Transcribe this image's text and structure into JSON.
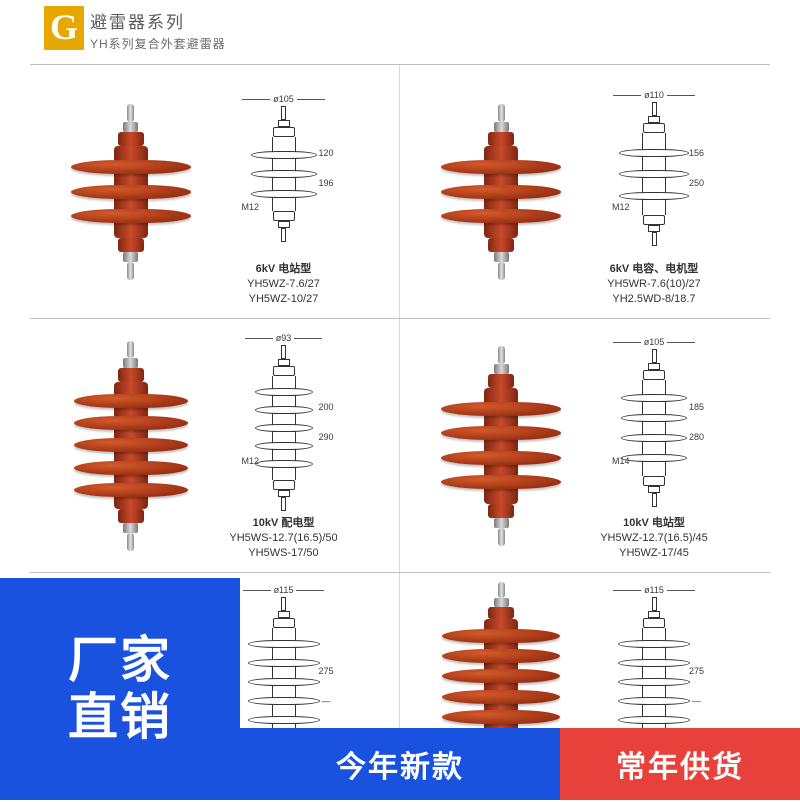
{
  "header": {
    "mark": "G",
    "title_cn": "避雷器系列",
    "title_sub": "YH系列复合外套避雷器"
  },
  "colors": {
    "shed_red_light": "#d35a2a",
    "shed_red_dark": "#9a2f12",
    "cap_red_light": "#c9492a",
    "cap_red_dark": "#7f2612",
    "metal_light": "#e4e4e4",
    "metal_dark": "#7a7a7a",
    "line": "#333333",
    "mark_bg": "#e6a800",
    "border": "#bfbfbf",
    "overlay_blue": "#1a52e0",
    "overlay_red": "#e8413c"
  },
  "rows": [
    {
      "left": {
        "photo": {
          "sheds": 3,
          "shed_w": 120,
          "body_h": 92
        },
        "tech": {
          "sheds": 3,
          "shed_w": 66,
          "body_h": 74,
          "top_dim": "ø105",
          "side_dims": [
            "120",
            "196"
          ],
          "mlabel": "M12"
        },
        "caption_main": "6kV 电站型",
        "caption_models": "YH5WZ-7.6/27\nYH5WZ-10/27"
      },
      "right": {
        "photo": {
          "sheds": 3,
          "shed_w": 120,
          "body_h": 92
        },
        "tech": {
          "sheds": 3,
          "shed_w": 70,
          "body_h": 82,
          "top_dim": "ø110",
          "side_dims": [
            "156",
            "250"
          ],
          "mlabel": "M12"
        },
        "caption_main": "6kV 电容、电机型",
        "caption_models": "YH5WR-7.6(10)/27\nYH2.5WD-8/18.7"
      }
    },
    {
      "left": {
        "photo": {
          "sheds": 5,
          "shed_w": 114,
          "body_h": 128
        },
        "tech": {
          "sheds": 5,
          "shed_w": 58,
          "body_h": 104,
          "top_dim": "ø93",
          "side_dims": [
            "200",
            "290"
          ],
          "mlabel": "M12"
        },
        "caption_main": "10kV 配电型",
        "caption_models": "YH5WS-12.7(16.5)/50\nYH5WS-17/50"
      },
      "right": {
        "photo": {
          "sheds": 4,
          "shed_w": 120,
          "body_h": 116
        },
        "tech": {
          "sheds": 4,
          "shed_w": 66,
          "body_h": 96,
          "top_dim": "ø105",
          "side_dims": [
            "185",
            "280"
          ],
          "mlabel": "M14"
        },
        "caption_main": "10kV 电站型",
        "caption_models": "YH5WZ-12.7(16.5)/45\nYH5WZ-17/45"
      }
    },
    {
      "left": {
        "photo": {
          "sheds": 6,
          "shed_w": 118,
          "body_h": 150
        },
        "tech": {
          "sheds": 6,
          "shed_w": 72,
          "body_h": 128,
          "top_dim": "ø115",
          "side_dims": [
            "275",
            "—"
          ],
          "mlabel": ""
        },
        "caption_main": "",
        "caption_models": ""
      },
      "right": {
        "photo": {
          "sheds": 6,
          "shed_w": 118,
          "body_h": 150
        },
        "tech": {
          "sheds": 6,
          "shed_w": 72,
          "body_h": 128,
          "top_dim": "ø115",
          "side_dims": [
            "275",
            "—"
          ],
          "mlabel": ""
        },
        "caption_main": "",
        "caption_models": ""
      }
    }
  ],
  "overlays": {
    "factory": "厂家\n直销",
    "new": "今年新款",
    "stock": "常年供货"
  }
}
